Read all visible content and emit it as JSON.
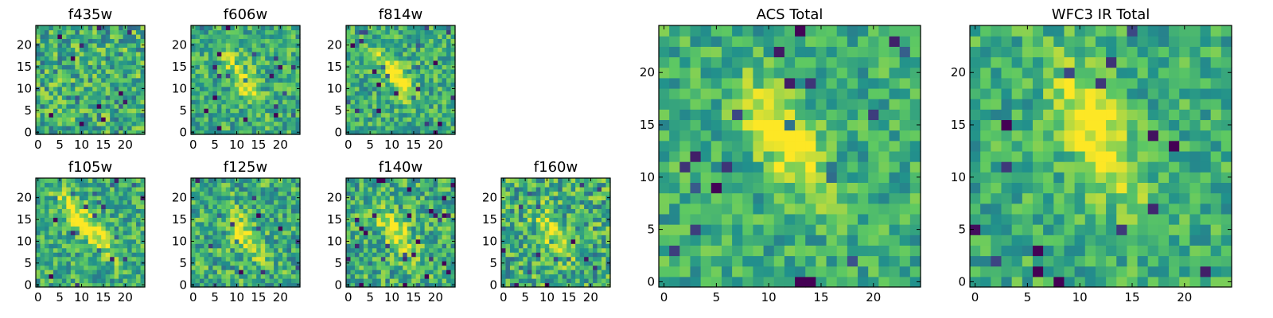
{
  "figure": {
    "colormap": "viridis",
    "colormap_stops": [
      "#440154",
      "#3b528b",
      "#21918c",
      "#5ec962",
      "#fde725"
    ],
    "panels": [
      {
        "title": "f435w",
        "xticks": [
          "0",
          "5",
          "10",
          "15",
          "20"
        ],
        "yticks": [
          "0",
          "5",
          "10",
          "15",
          "20"
        ]
      },
      {
        "title": "f606w",
        "xticks": [
          "0",
          "5",
          "10",
          "15",
          "20"
        ],
        "yticks": [
          "0",
          "5",
          "10",
          "15",
          "20"
        ]
      },
      {
        "title": "f814w",
        "xticks": [
          "0",
          "5",
          "10",
          "15",
          "20"
        ],
        "yticks": [
          "0",
          "5",
          "10",
          "15",
          "20"
        ]
      },
      {
        "title": "f105w",
        "xticks": [
          "0",
          "5",
          "10",
          "15",
          "20"
        ],
        "yticks": [
          "0",
          "5",
          "10",
          "15",
          "20"
        ]
      },
      {
        "title": "f125w",
        "xticks": [
          "0",
          "5",
          "10",
          "15",
          "20"
        ],
        "yticks": [
          "0",
          "5",
          "10",
          "15",
          "20"
        ]
      },
      {
        "title": "f140w",
        "xticks": [
          "0",
          "5",
          "10",
          "15",
          "20"
        ],
        "yticks": [
          "0",
          "5",
          "10",
          "15",
          "20"
        ]
      },
      {
        "title": "f160w",
        "xticks": [
          "0",
          "5",
          "10",
          "15",
          "20"
        ],
        "yticks": [
          "0",
          "5",
          "10",
          "15",
          "20"
        ]
      },
      {
        "title": "ACS Total",
        "xticks": [
          "0",
          "5",
          "10",
          "15",
          "20"
        ],
        "yticks": [
          "0",
          "5",
          "10",
          "15",
          "20"
        ]
      },
      {
        "title": "WFC3 IR Total",
        "xticks": [
          "0",
          "5",
          "10",
          "15",
          "20"
        ],
        "yticks": [
          "0",
          "5",
          "10",
          "15",
          "20"
        ]
      }
    ]
  },
  "chart_data": [
    {
      "type": "heatmap",
      "title": "f435w",
      "grid_size": [
        25,
        25
      ],
      "xlim": [
        -0.5,
        24.5
      ],
      "ylim": [
        -0.5,
        24.5
      ],
      "feature": {
        "type": "none"
      },
      "noise": 0.55,
      "seed": 11
    },
    {
      "type": "heatmap",
      "title": "f606w",
      "grid_size": [
        25,
        25
      ],
      "xlim": [
        -0.5,
        24.5
      ],
      "ylim": [
        -0.5,
        24.5
      ],
      "feature": {
        "type": "ellipse",
        "center": [
          11,
          13
        ],
        "major": 7,
        "minor": 2.5,
        "angle_deg": 120,
        "amplitude": 0.35
      },
      "noise": 0.45,
      "seed": 23
    },
    {
      "type": "heatmap",
      "title": "f814w",
      "grid_size": [
        25,
        25
      ],
      "xlim": [
        -0.5,
        24.5
      ],
      "ylim": [
        -0.5,
        24.5
      ],
      "feature": {
        "type": "ellipse",
        "center": [
          11,
          13
        ],
        "major": 6,
        "minor": 2.2,
        "angle_deg": 125,
        "amplitude": 0.5
      },
      "noise": 0.45,
      "seed": 37
    },
    {
      "type": "heatmap",
      "title": "f105w",
      "grid_size": [
        25,
        25
      ],
      "xlim": [
        -0.5,
        24.5
      ],
      "ylim": [
        -0.5,
        24.5
      ],
      "feature": {
        "type": "ellipse",
        "center": [
          11,
          14
        ],
        "major": 9,
        "minor": 2.2,
        "angle_deg": 130,
        "amplitude": 0.45
      },
      "noise": 0.45,
      "seed": 41
    },
    {
      "type": "heatmap",
      "title": "f125w",
      "grid_size": [
        25,
        25
      ],
      "xlim": [
        -0.5,
        24.5
      ],
      "ylim": [
        -0.5,
        24.5
      ],
      "feature": {
        "type": "ellipse",
        "center": [
          12,
          11
        ],
        "major": 6,
        "minor": 2.5,
        "angle_deg": 120,
        "amplitude": 0.35
      },
      "noise": 0.5,
      "seed": 53
    },
    {
      "type": "heatmap",
      "title": "f140w",
      "grid_size": [
        25,
        25
      ],
      "xlim": [
        -0.5,
        24.5
      ],
      "ylim": [
        -0.5,
        24.5
      ],
      "feature": {
        "type": "ellipse",
        "center": [
          11,
          12
        ],
        "major": 7,
        "minor": 2.5,
        "angle_deg": 125,
        "amplitude": 0.4
      },
      "noise": 0.5,
      "seed": 67
    },
    {
      "type": "heatmap",
      "title": "f160w",
      "grid_size": [
        25,
        25
      ],
      "xlim": [
        -0.5,
        24.5
      ],
      "ylim": [
        -0.5,
        24.5
      ],
      "feature": {
        "type": "ellipse",
        "center": [
          11,
          12
        ],
        "major": 6,
        "minor": 2.5,
        "angle_deg": 120,
        "amplitude": 0.35
      },
      "noise": 0.55,
      "seed": 79
    },
    {
      "type": "heatmap",
      "title": "ACS Total",
      "grid_size": [
        25,
        25
      ],
      "xlim": [
        -0.5,
        24.5
      ],
      "ylim": [
        -0.5,
        24.5
      ],
      "feature": {
        "type": "ellipse",
        "center": [
          11.5,
          13.5
        ],
        "major": 6,
        "minor": 2.5,
        "angle_deg": 125,
        "amplitude": 0.45
      },
      "noise": 0.38,
      "seed": 97
    },
    {
      "type": "heatmap",
      "title": "WFC3 IR Total",
      "grid_size": [
        25,
        25
      ],
      "xlim": [
        -0.5,
        24.5
      ],
      "ylim": [
        -0.5,
        24.5
      ],
      "feature": {
        "type": "ellipse",
        "center": [
          11.5,
          14
        ],
        "major": 7,
        "minor": 2.8,
        "angle_deg": 115,
        "amplitude": 0.45
      },
      "noise": 0.38,
      "seed": 113
    }
  ]
}
